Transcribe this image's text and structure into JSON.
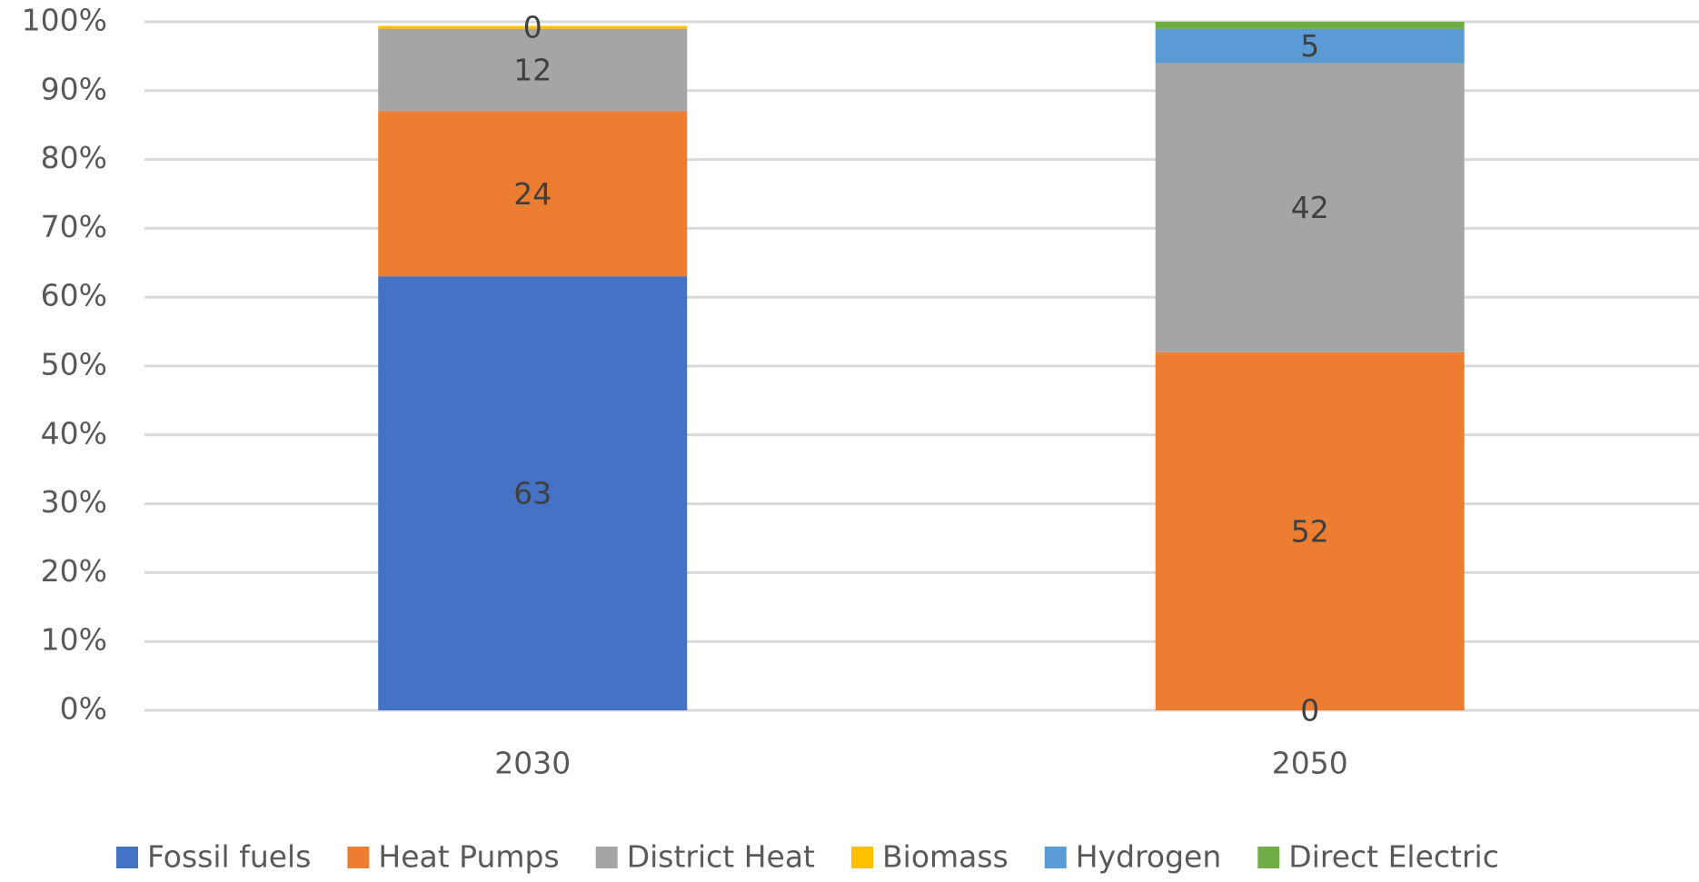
{
  "chart_data": {
    "type": "stacked_bar",
    "categories": [
      "2030",
      "2050"
    ],
    "series": [
      {
        "name": "Fossil fuels",
        "color": "#4472c4",
        "values": [
          63,
          0
        ],
        "value_labels": [
          "63",
          "0"
        ]
      },
      {
        "name": "Heat Pumps",
        "color": "#ed7d31",
        "values": [
          24,
          52
        ],
        "value_labels": [
          "24",
          "52"
        ]
      },
      {
        "name": "District Heat",
        "color": "#a5a5a5",
        "values": [
          12,
          42
        ],
        "value_labels": [
          "12",
          "42"
        ]
      },
      {
        "name": "Biomass",
        "color": "#ffc000",
        "values": [
          0.4,
          0
        ],
        "value_labels": [
          "0",
          null
        ]
      },
      {
        "name": "Hydrogen",
        "color": "#5b9bd5",
        "values": [
          0,
          5
        ],
        "value_labels": [
          null,
          "5"
        ]
      },
      {
        "name": "Direct Electric",
        "color": "#70ad47",
        "values": [
          0,
          1
        ],
        "value_labels": [
          null,
          null
        ]
      }
    ],
    "ylim": [
      0,
      100
    ],
    "yticks": [
      {
        "value": 0,
        "label": "0%"
      },
      {
        "value": 10,
        "label": "10%"
      },
      {
        "value": 20,
        "label": "20%"
      },
      {
        "value": 30,
        "label": "30%"
      },
      {
        "value": 40,
        "label": "40%"
      },
      {
        "value": 50,
        "label": "50%"
      },
      {
        "value": 60,
        "label": "60%"
      },
      {
        "value": 70,
        "label": "70%"
      },
      {
        "value": 80,
        "label": "80%"
      },
      {
        "value": 90,
        "label": "90%"
      },
      {
        "value": 100,
        "label": "100%"
      }
    ],
    "grid": true,
    "legend": "bottom"
  }
}
